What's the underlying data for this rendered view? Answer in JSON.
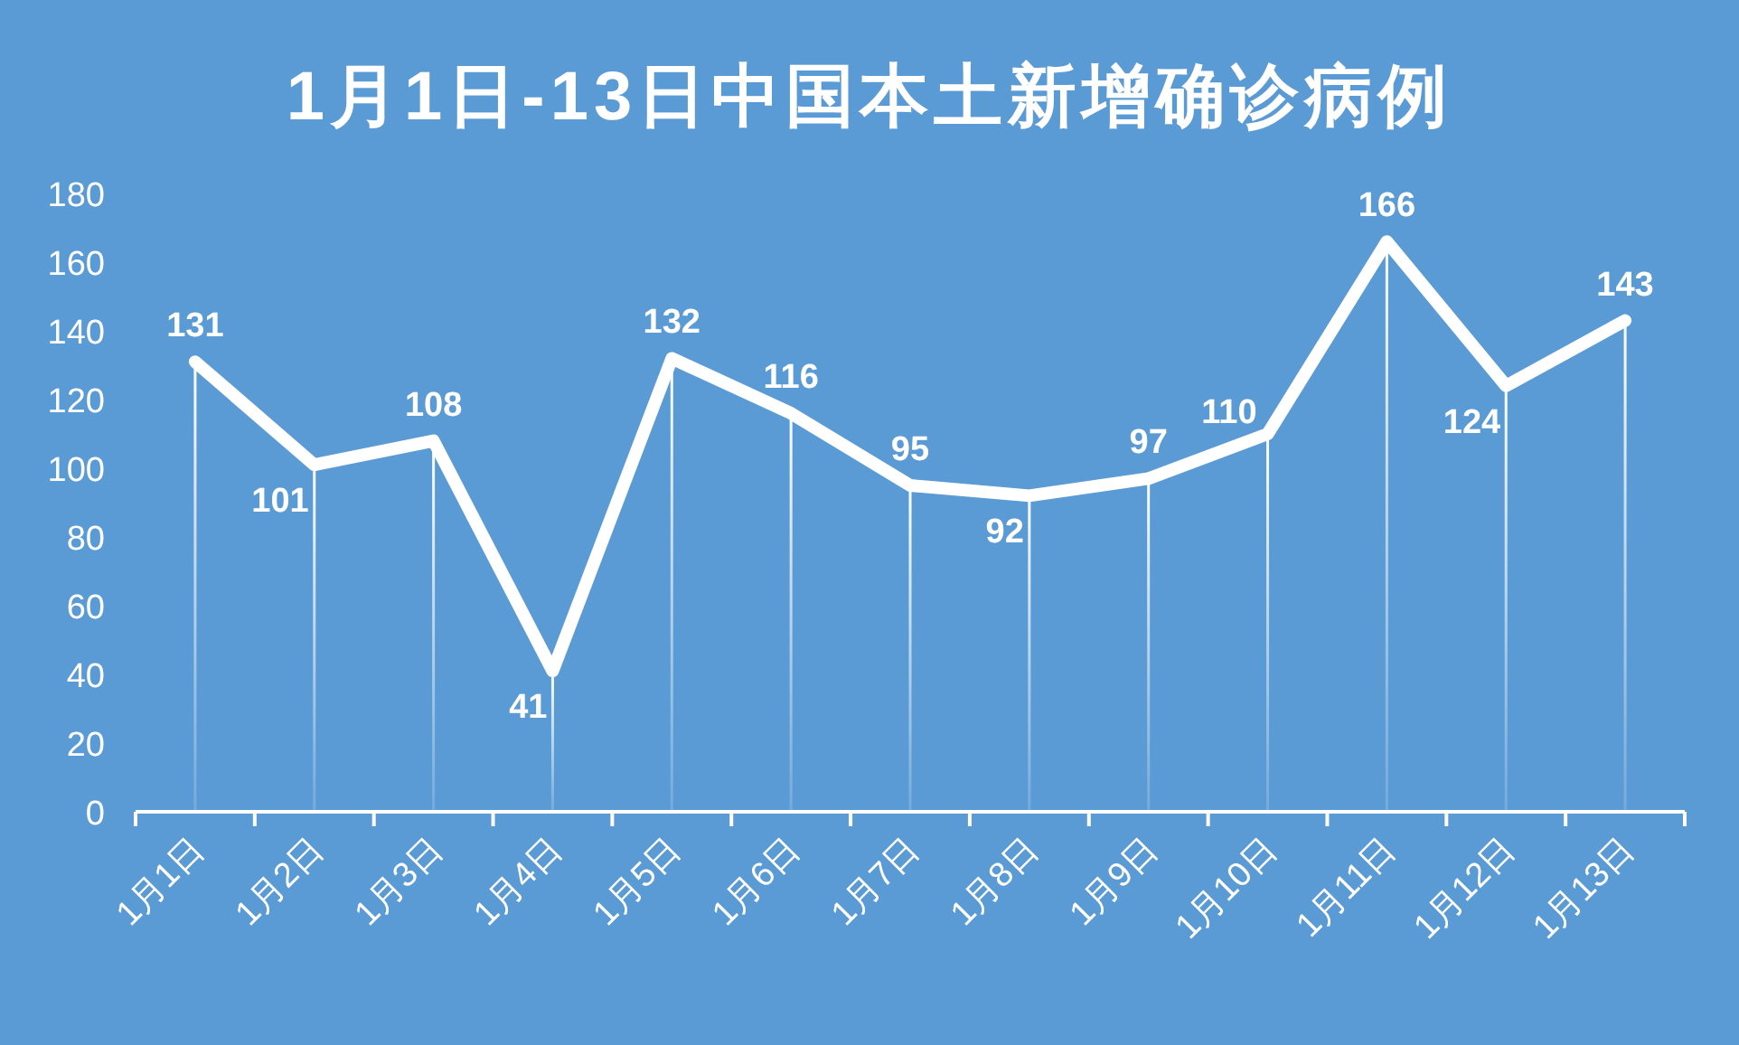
{
  "chart_data": {
    "type": "line",
    "title": "1月1日-13日中国本土新增确诊病例",
    "categories": [
      "1月1日",
      "1月2日",
      "1月3日",
      "1月4日",
      "1月5日",
      "1月6日",
      "1月7日",
      "1月8日",
      "1月9日",
      "1月10日",
      "1月11日",
      "1月12日",
      "1月13日"
    ],
    "series": [
      {
        "color": "#ffffff",
        "values": [
          131,
          101,
          108,
          41,
          132,
          116,
          95,
          92,
          97,
          110,
          166,
          124,
          143
        ],
        "value_labels": [
          "131",
          "101",
          "108",
          "41",
          "132",
          "116",
          "95",
          "92",
          "97",
          "110",
          "166",
          "124",
          "143"
        ]
      },
      {
        "type": "bar",
        "color": "#ffffff",
        "values": [
          131,
          101,
          108,
          41,
          132,
          116,
          95,
          92,
          97,
          110,
          166,
          124,
          143
        ]
      }
    ],
    "ylim": [
      0,
      180
    ],
    "yticks": [
      0,
      20,
      40,
      60,
      80,
      100,
      120,
      140,
      160,
      180
    ],
    "grid": false,
    "legend": false,
    "marker": "none",
    "line_style": "solid"
  }
}
